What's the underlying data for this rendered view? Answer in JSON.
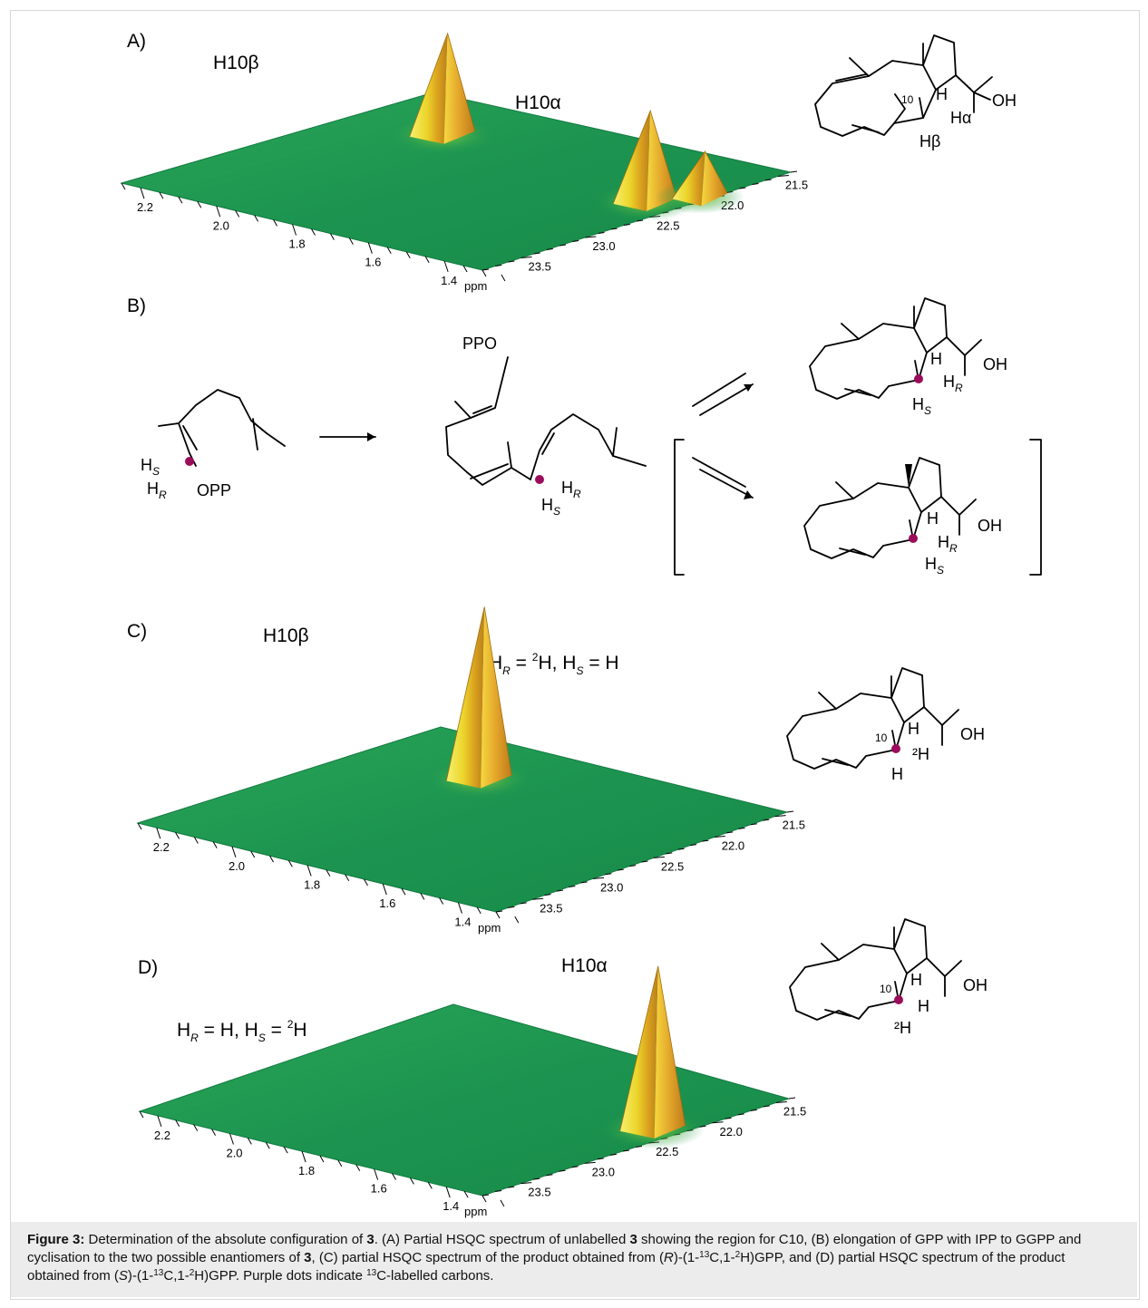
{
  "panels": [
    {
      "id": "A",
      "label": "A)",
      "peak_labels": [
        "H10β",
        "H10α"
      ],
      "chart_data": {
        "type": "heatmap",
        "x_axis": {
          "label": "ppm",
          "ticks": [
            "2.2",
            "2.0",
            "1.8",
            "1.6",
            "1.4"
          ]
        },
        "z_axis": {
          "ticks": [
            "23.5",
            "23.0",
            "22.5",
            "22.0",
            "21.5"
          ]
        },
        "peaks": [
          {
            "name": "H10β",
            "h": 2.02,
            "c": 22.0,
            "height": 1.0
          },
          {
            "name": "H10α",
            "h": 1.38,
            "c": 22.3,
            "height": 0.9
          },
          {
            "name": "",
            "h": 1.32,
            "c": 22.05,
            "height": 0.45
          }
        ]
      }
    },
    {
      "id": "B",
      "label": "B)"
    },
    {
      "id": "C",
      "label": "C)",
      "peak_labels": [
        "H10β"
      ],
      "condition": {
        "r": "R",
        "r_val": "²H",
        "s": "S",
        "s_val": "H"
      },
      "chart_data": {
        "type": "heatmap",
        "x_axis": {
          "label": "ppm",
          "ticks": [
            "2.2",
            "2.0",
            "1.8",
            "1.6",
            "1.4"
          ]
        },
        "z_axis": {
          "ticks": [
            "23.5",
            "23.0",
            "22.5",
            "22.0",
            "21.5"
          ]
        },
        "peaks": [
          {
            "name": "H10β",
            "h": 1.94,
            "c": 22.0,
            "height": 1.0
          }
        ]
      }
    },
    {
      "id": "D",
      "label": "D)",
      "peak_labels": [
        "H10α"
      ],
      "condition": {
        "r": "R",
        "r_val": "H",
        "s": "S",
        "s_val": "²H"
      },
      "chart_data": {
        "type": "heatmap",
        "x_axis": {
          "label": "ppm",
          "ticks": [
            "2.2",
            "2.0",
            "1.8",
            "1.6",
            "1.4"
          ]
        },
        "z_axis": {
          "ticks": [
            "23.5",
            "23.0",
            "22.5",
            "22.0",
            "21.5"
          ]
        },
        "peaks": [
          {
            "name": "H10α",
            "h": 1.36,
            "c": 22.3,
            "height": 1.0
          }
        ]
      }
    }
  ],
  "chem_text": {
    "oh": "OH",
    "h": "H",
    "ha": "Hα",
    "hb": "Hβ",
    "hr": "H",
    "hs": "H",
    "r": "R",
    "s": "S",
    "ten": "10",
    "opp": "OPP",
    "ppo": "PPO",
    "d": "²H",
    "dsup": "2"
  },
  "colors": {
    "surface": "#1f9a52",
    "peak_yellow": "#f2e53a",
    "peak_orange": "#d9901a",
    "dot": "#9b0d5a"
  },
  "caption": {
    "head": "Figure 3:",
    "t1": " Determination of the absolute configuration of ",
    "c1": "3",
    "t2": ". (A) Partial HSQC spectrum of unlabelled ",
    "c2": "3",
    "t3": " showing the region for C10, (B) elongation of GPP with IPP to GGPP and cyclisation to the two possible enantiomers of ",
    "c3": "3",
    "t4": ", (C) partial HSQC spectrum of the product obtained from (",
    "i1": "R",
    "t5": ")-(1-",
    "s1": "13",
    "t6": "C,1-",
    "s2": "2",
    "t7": "H)GPP, and (D) partial HSQC spectrum of the product obtained from (",
    "i2": "S",
    "t8": ")-(1-",
    "s3": "13",
    "t9": "C,1-",
    "s4": "2",
    "t10": "H)GPP. Purple dots indicate ",
    "s5": "13",
    "t11": "C-labelled carbons."
  }
}
